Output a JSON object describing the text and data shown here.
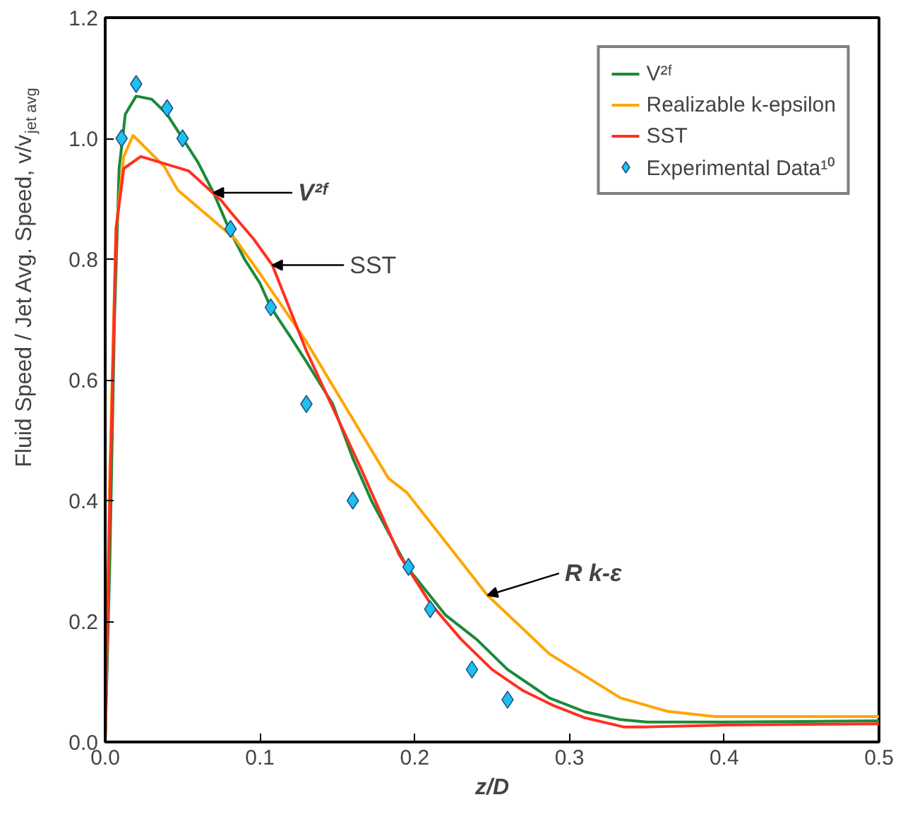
{
  "chart_data": {
    "type": "line",
    "xlabel": "z/D",
    "ylabel": "Fluid Speed / Jet Avg. Speed, v/v$_{jet avg}$",
    "xlim": [
      0,
      0.5
    ],
    "ylim": [
      0,
      1.2
    ],
    "xticks": [
      {
        "value": 0,
        "label": "0.0"
      },
      {
        "value": 0.1,
        "label": "0.1"
      },
      {
        "value": 0.2,
        "label": "0.2"
      },
      {
        "value": 0.3,
        "label": "0.3"
      },
      {
        "value": 0.4,
        "label": "0.4"
      },
      {
        "value": 0.5,
        "label": "0.5"
      }
    ],
    "yticks": [
      {
        "value": 0,
        "label": "0.0"
      },
      {
        "value": 0.2,
        "label": "0.2"
      },
      {
        "value": 0.4,
        "label": "0.4"
      },
      {
        "value": 0.6,
        "label": "0.6"
      },
      {
        "value": 0.8,
        "label": "0.8"
      },
      {
        "value": 1.0,
        "label": "1.0"
      },
      {
        "value": 1.2,
        "label": "1.2"
      }
    ],
    "grid": false,
    "legend": "top right",
    "line_style": "solid",
    "series": [
      {
        "name": "V²ᶠ",
        "color": "#1a8a3a",
        "x": [
          0,
          0.003,
          0.006,
          0.009,
          0.013,
          0.02,
          0.03,
          0.04,
          0.05,
          0.06,
          0.07,
          0.075,
          0.08,
          0.09,
          0.1,
          0.107,
          0.12,
          0.13,
          0.147,
          0.16,
          0.172,
          0.195,
          0.22,
          0.24,
          0.26,
          0.287,
          0.31,
          0.333,
          0.35,
          0.4,
          0.45,
          0.5
        ],
        "values": [
          0,
          0.3,
          0.7,
          0.95,
          1.04,
          1.07,
          1.065,
          1.04,
          1.0,
          0.96,
          0.91,
          0.88,
          0.85,
          0.8,
          0.76,
          0.72,
          0.67,
          0.63,
          0.56,
          0.47,
          0.4,
          0.29,
          0.21,
          0.17,
          0.12,
          0.073,
          0.05,
          0.037,
          0.033,
          0.033,
          0.034,
          0.035
        ]
      },
      {
        "name": "Realizable k-epsilon",
        "color": "#ffa500",
        "x": [
          0,
          0.003,
          0.007,
          0.012,
          0.018,
          0.038,
          0.047,
          0.069,
          0.084,
          0.1,
          0.13,
          0.183,
          0.195,
          0.247,
          0.287,
          0.333,
          0.363,
          0.394,
          0.45,
          0.5
        ],
        "values": [
          0,
          0.45,
          0.85,
          0.97,
          1.005,
          0.954,
          0.914,
          0.866,
          0.833,
          0.776,
          0.663,
          0.437,
          0.413,
          0.243,
          0.146,
          0.073,
          0.051,
          0.042,
          0.042,
          0.042
        ]
      },
      {
        "name": "SST",
        "color": "#ff3020",
        "x": [
          0,
          0.003,
          0.007,
          0.012,
          0.023,
          0.054,
          0.075,
          0.081,
          0.096,
          0.108,
          0.13,
          0.164,
          0.19,
          0.21,
          0.23,
          0.25,
          0.27,
          0.29,
          0.31,
          0.335,
          0.35,
          0.4,
          0.5
        ],
        "values": [
          0,
          0.4,
          0.85,
          0.95,
          0.97,
          0.946,
          0.897,
          0.878,
          0.833,
          0.79,
          0.648,
          0.46,
          0.31,
          0.23,
          0.17,
          0.12,
          0.085,
          0.06,
          0.04,
          0.025,
          0.025,
          0.028,
          0.03
        ]
      },
      {
        "name": "Experimental Data¹⁰",
        "color": "#1ec0f0",
        "type": "scatter",
        "marker": "diamond",
        "x": [
          0.0106,
          0.02,
          0.04,
          0.05,
          0.081,
          0.107,
          0.13,
          0.16,
          0.196,
          0.21,
          0.237,
          0.26
        ],
        "values": [
          1.0,
          1.09,
          1.05,
          1.0,
          0.85,
          0.72,
          0.56,
          0.4,
          0.29,
          0.22,
          0.12,
          0.07
        ]
      }
    ],
    "annotations": [
      {
        "text": "V²ᶠ",
        "x": 0.07,
        "y": 0.91
      },
      {
        "text": "SST",
        "x": 0.108,
        "y": 0.79
      },
      {
        "text": "R k-ε",
        "x": 0.247,
        "y": 0.243
      }
    ]
  }
}
